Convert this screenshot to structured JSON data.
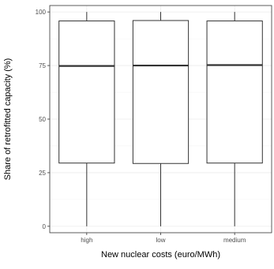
{
  "chart_data": {
    "type": "box",
    "xlabel": "New nuclear costs (euro/MWh)",
    "ylabel": "Share of retrofitted capacity (%)",
    "categories": [
      "high",
      "low",
      "medium"
    ],
    "ylim": [
      -3,
      103
    ],
    "yticks": [
      0,
      25,
      50,
      75,
      100
    ],
    "grid": true,
    "boxes": [
      {
        "category": "high",
        "min": 0,
        "q1": 29.5,
        "median": 74.8,
        "q3": 95.8,
        "max": 100
      },
      {
        "category": "low",
        "min": 0,
        "q1": 29.3,
        "median": 75.0,
        "q3": 96.0,
        "max": 100
      },
      {
        "category": "medium",
        "min": 0,
        "q1": 29.5,
        "median": 75.2,
        "q3": 95.8,
        "max": 100
      }
    ]
  },
  "colors": {
    "panel_border": "#333333",
    "grid_major": "#ebebeb",
    "grid_minor": "#f5f5f5",
    "box_fill": "#ffffff",
    "box_stroke": "#333333",
    "tick_text": "#4d4d4d",
    "axis_title": "#000000"
  }
}
